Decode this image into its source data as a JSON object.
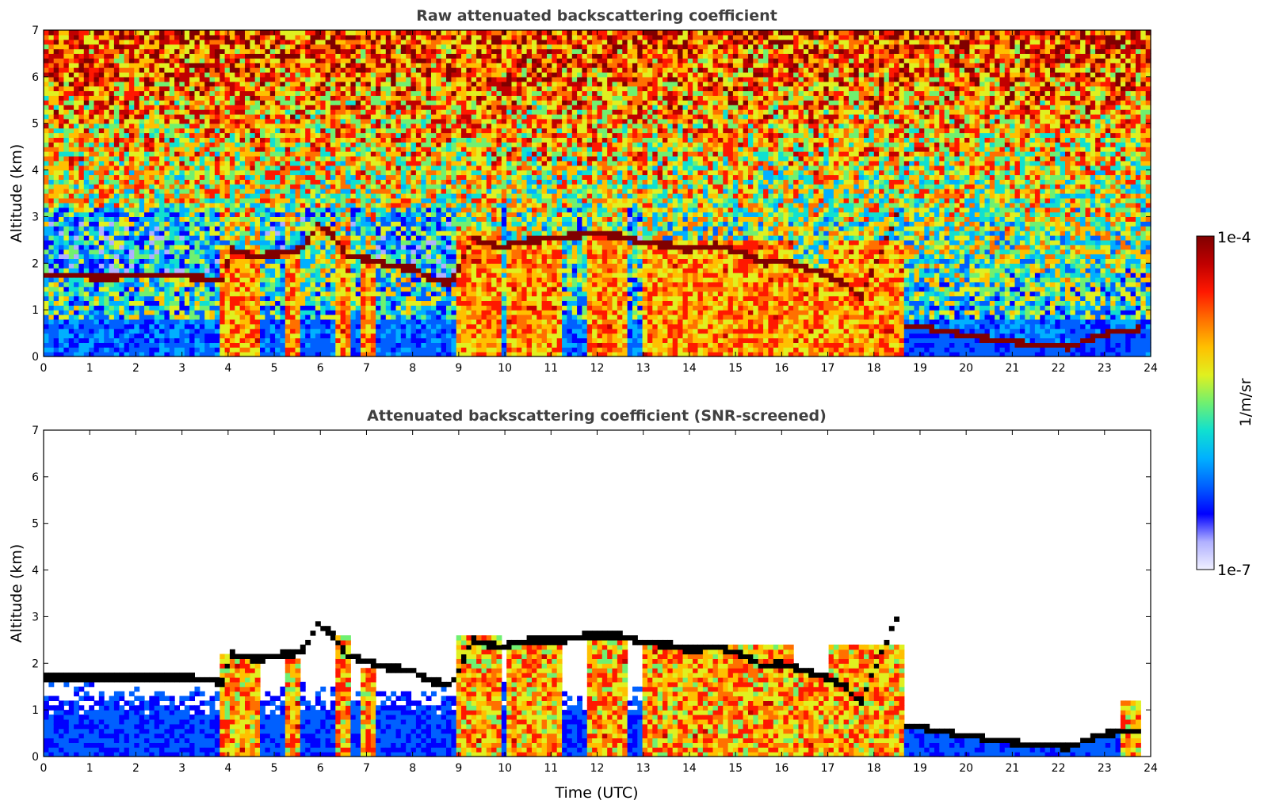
{
  "chart_data": [
    {
      "type": "heatmap",
      "title": "Raw attenuated backscattering coefficient",
      "xlabel": "",
      "ylabel": "Altitude (km)",
      "xlim": [
        0,
        24
      ],
      "ylim": [
        0,
        7
      ],
      "xticks": [
        "0",
        "1",
        "2",
        "3",
        "4",
        "5",
        "6",
        "7",
        "8",
        "9",
        "10",
        "11",
        "12",
        "13",
        "14",
        "15",
        "16",
        "17",
        "18",
        "19",
        "20",
        "21",
        "22",
        "23",
        "24"
      ],
      "yticks": [
        "0",
        "1",
        "2",
        "3",
        "4",
        "5",
        "6",
        "7"
      ],
      "screened": false,
      "cloud_base_layer": [
        {
          "t": 0.0,
          "h": 1.75
        },
        {
          "t": 1.0,
          "h": 1.72
        },
        {
          "t": 1.6,
          "h": 1.72
        },
        {
          "t": 2.9,
          "h": 1.75
        },
        {
          "t": 3.9,
          "h": 1.62
        },
        {
          "t": 4.05,
          "h": 2.3
        },
        {
          "t": 4.6,
          "h": 2.15
        },
        {
          "t": 5.0,
          "h": 2.2
        },
        {
          "t": 5.6,
          "h": 2.3
        },
        {
          "t": 5.95,
          "h": 2.85
        },
        {
          "t": 6.3,
          "h": 2.6
        },
        {
          "t": 6.6,
          "h": 2.15
        },
        {
          "t": 7.0,
          "h": 2.1
        },
        {
          "t": 7.5,
          "h": 1.95
        },
        {
          "t": 8.0,
          "h": 1.9
        },
        {
          "t": 8.4,
          "h": 1.65
        },
        {
          "t": 8.85,
          "h": 1.6
        },
        {
          "t": 9.3,
          "h": 2.55
        },
        {
          "t": 9.9,
          "h": 2.35
        },
        {
          "t": 10.5,
          "h": 2.5
        },
        {
          "t": 11.2,
          "h": 2.55
        },
        {
          "t": 11.8,
          "h": 2.65
        },
        {
          "t": 12.5,
          "h": 2.6
        },
        {
          "t": 13.0,
          "h": 2.45
        },
        {
          "t": 13.5,
          "h": 2.4
        },
        {
          "t": 14.0,
          "h": 2.3
        },
        {
          "t": 14.6,
          "h": 2.4
        },
        {
          "t": 15.1,
          "h": 2.25
        },
        {
          "t": 15.6,
          "h": 2.0
        },
        {
          "t": 16.0,
          "h": 2.05
        },
        {
          "t": 16.5,
          "h": 1.9
        },
        {
          "t": 17.0,
          "h": 1.75
        },
        {
          "t": 17.4,
          "h": 1.55
        },
        {
          "t": 17.7,
          "h": 1.25
        },
        {
          "t": 18.0,
          "h": 1.9
        },
        {
          "t": 18.5,
          "h": 3.05
        }
      ],
      "boundary_layer_top": [
        {
          "t": 18.6,
          "h": 0.7
        },
        {
          "t": 19.2,
          "h": 0.62
        },
        {
          "t": 20.0,
          "h": 0.45
        },
        {
          "t": 21.0,
          "h": 0.32
        },
        {
          "t": 22.2,
          "h": 0.2
        },
        {
          "t": 23.0,
          "h": 0.5
        },
        {
          "t": 23.8,
          "h": 0.6
        }
      ],
      "convective_columns": [
        {
          "t0": 3.85,
          "t1": 4.7,
          "top": 2.3
        },
        {
          "t0": 5.25,
          "t1": 5.55,
          "top": 2.2
        },
        {
          "t0": 6.3,
          "t1": 6.7,
          "top": 2.6
        },
        {
          "t0": 6.9,
          "t1": 7.2,
          "top": 2.0
        },
        {
          "t0": 9.0,
          "t1": 9.9,
          "top": 2.7
        },
        {
          "t0": 10.0,
          "t1": 11.2,
          "top": 2.5
        },
        {
          "t0": 11.8,
          "t1": 12.6,
          "top": 2.6
        },
        {
          "t0": 13.0,
          "t1": 16.3,
          "top": 2.5
        },
        {
          "t0": 16.3,
          "t1": 17.0,
          "top": 1.9
        },
        {
          "t0": 17.0,
          "t1": 18.6,
          "top": 2.5
        },
        {
          "t0": 23.3,
          "t1": 23.8,
          "top": 0.65
        }
      ]
    },
    {
      "type": "heatmap",
      "title": "Attenuated backscattering coefficient (SNR-screened)",
      "xlabel": "Time (UTC)",
      "ylabel": "Altitude (km)",
      "xlim": [
        0,
        24
      ],
      "ylim": [
        0,
        7
      ],
      "xticks": [
        "0",
        "1",
        "2",
        "3",
        "4",
        "5",
        "6",
        "7",
        "8",
        "9",
        "10",
        "11",
        "12",
        "13",
        "14",
        "15",
        "16",
        "17",
        "18",
        "19",
        "20",
        "21",
        "22",
        "23",
        "24"
      ],
      "yticks": [
        "0",
        "1",
        "2",
        "3",
        "4",
        "5",
        "6",
        "7"
      ],
      "screened": true,
      "cloud_base_layer": [
        {
          "t": 0.0,
          "h": 1.72
        },
        {
          "t": 1.0,
          "h": 1.7
        },
        {
          "t": 1.6,
          "h": 1.7
        },
        {
          "t": 2.9,
          "h": 1.72
        },
        {
          "t": 3.9,
          "h": 1.6
        },
        {
          "t": 4.05,
          "h": 2.2
        },
        {
          "t": 4.6,
          "h": 2.1
        },
        {
          "t": 5.0,
          "h": 2.15
        },
        {
          "t": 5.6,
          "h": 2.25
        },
        {
          "t": 5.95,
          "h": 2.85
        },
        {
          "t": 6.3,
          "h": 2.6
        },
        {
          "t": 6.6,
          "h": 2.15
        },
        {
          "t": 7.0,
          "h": 2.05
        },
        {
          "t": 7.5,
          "h": 1.9
        },
        {
          "t": 8.0,
          "h": 1.85
        },
        {
          "t": 8.4,
          "h": 1.6
        },
        {
          "t": 8.85,
          "h": 1.55
        },
        {
          "t": 9.3,
          "h": 2.5
        },
        {
          "t": 9.9,
          "h": 2.35
        },
        {
          "t": 10.5,
          "h": 2.5
        },
        {
          "t": 11.2,
          "h": 2.5
        },
        {
          "t": 11.8,
          "h": 2.6
        },
        {
          "t": 12.5,
          "h": 2.6
        },
        {
          "t": 13.0,
          "h": 2.45
        },
        {
          "t": 13.5,
          "h": 2.4
        },
        {
          "t": 14.0,
          "h": 2.3
        },
        {
          "t": 14.6,
          "h": 2.35
        },
        {
          "t": 15.1,
          "h": 2.2
        },
        {
          "t": 15.6,
          "h": 1.95
        },
        {
          "t": 16.0,
          "h": 2.0
        },
        {
          "t": 16.5,
          "h": 1.85
        },
        {
          "t": 17.0,
          "h": 1.7
        },
        {
          "t": 17.4,
          "h": 1.5
        },
        {
          "t": 17.7,
          "h": 1.15
        },
        {
          "t": 18.0,
          "h": 1.85
        },
        {
          "t": 18.5,
          "h": 3.0
        }
      ],
      "boundary_layer_top": [
        {
          "t": 18.6,
          "h": 0.7
        },
        {
          "t": 19.2,
          "h": 0.6
        },
        {
          "t": 20.0,
          "h": 0.45
        },
        {
          "t": 21.0,
          "h": 0.3
        },
        {
          "t": 22.2,
          "h": 0.2
        },
        {
          "t": 23.0,
          "h": 0.48
        },
        {
          "t": 23.8,
          "h": 0.6
        }
      ],
      "convective_columns": [
        {
          "t0": 3.85,
          "t1": 4.7,
          "top": 2.2
        },
        {
          "t0": 5.25,
          "t1": 5.55,
          "top": 2.15
        },
        {
          "t0": 6.3,
          "t1": 6.7,
          "top": 2.6
        },
        {
          "t0": 6.9,
          "t1": 7.2,
          "top": 1.95
        },
        {
          "t0": 9.0,
          "t1": 9.9,
          "top": 2.6
        },
        {
          "t0": 10.0,
          "t1": 11.2,
          "top": 2.5
        },
        {
          "t0": 11.8,
          "t1": 12.6,
          "top": 2.6
        },
        {
          "t0": 13.0,
          "t1": 16.3,
          "top": 2.45
        },
        {
          "t0": 16.3,
          "t1": 17.0,
          "top": 1.85
        },
        {
          "t0": 17.0,
          "t1": 18.6,
          "top": 2.45
        },
        {
          "t0": 23.3,
          "t1": 23.8,
          "top": 1.2
        }
      ],
      "valid_below_cloud_km": 1.6
    }
  ],
  "colorbar": {
    "label": "1/m/sr",
    "max_label": "1e-4",
    "min_label": "1e-7",
    "colors": [
      "#f0f0ff",
      "#b0b0ff",
      "#0000ff",
      "#0060ff",
      "#00b0ff",
      "#10e0d0",
      "#70f070",
      "#e0f020",
      "#ffc000",
      "#ff7000",
      "#ff1800",
      "#c00000",
      "#800000"
    ]
  }
}
